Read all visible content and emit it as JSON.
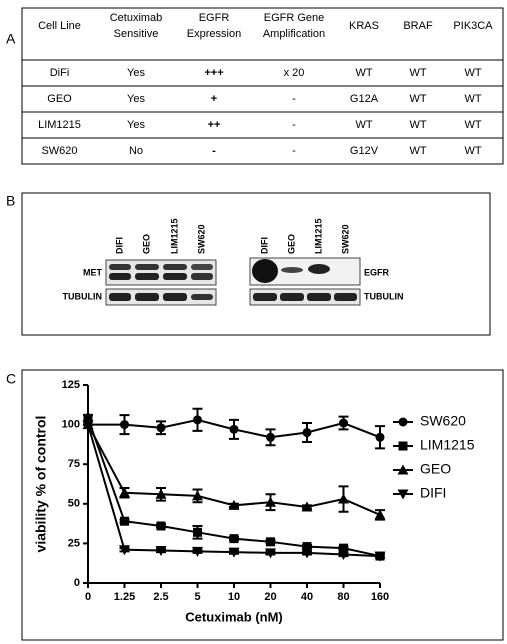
{
  "panels": {
    "a": "A",
    "b": "B",
    "c": "C"
  },
  "table": {
    "header": [
      [
        "Cell Line"
      ],
      [
        "Cetuximab",
        "Sensitive"
      ],
      [
        "EGFR",
        "Expression"
      ],
      [
        "EGFR Gene",
        "Amplification"
      ],
      [
        "KRAS"
      ],
      [
        "BRAF"
      ],
      [
        "PIK3CA"
      ]
    ],
    "rows": [
      [
        "DiFi",
        "Yes",
        "+++",
        "x 20",
        "WT",
        "WT",
        "WT"
      ],
      [
        "GEO",
        "Yes",
        "+",
        "-",
        "G12A",
        "WT",
        "WT"
      ],
      [
        "LIM1215",
        "Yes",
        "++",
        "-",
        "WT",
        "WT",
        "WT"
      ],
      [
        "SW620",
        "No",
        "-",
        "-",
        "G12V",
        "WT",
        "WT"
      ]
    ]
  },
  "blots": {
    "left": {
      "lanes": [
        "DIFI",
        "GEO",
        "LIM1215",
        "SW620"
      ],
      "targets": [
        "MET",
        "TUBULIN"
      ]
    },
    "right": {
      "lanes": [
        "DIFI",
        "GEO",
        "LIM1215",
        "SW620"
      ],
      "targets": [
        "EGFR",
        "TUBULIN"
      ]
    }
  },
  "chart_data": {
    "type": "line",
    "x_label": "Cetuximab (nM)",
    "y_label": "viability % of control",
    "categories": [
      "0",
      "1.25",
      "2.5",
      "5",
      "10",
      "20",
      "40",
      "80",
      "160"
    ],
    "ylim": [
      0,
      125
    ],
    "yticks": [
      0,
      25,
      50,
      75,
      100,
      125
    ],
    "legend": "right",
    "series": [
      {
        "name": "SW620",
        "color": "#000000",
        "marker": "circle",
        "values": [
          100,
          100,
          98,
          103,
          97,
          92,
          95,
          101,
          92
        ],
        "errors": [
          0,
          6,
          4,
          7,
          6,
          5,
          6,
          4,
          7
        ]
      },
      {
        "name": "LIM1215",
        "color": "#000000",
        "marker": "square",
        "values": [
          104,
          39,
          36,
          32,
          28,
          26,
          23,
          22,
          17
        ],
        "errors": [
          2,
          1,
          1,
          4,
          1,
          1,
          1,
          1,
          1
        ]
      },
      {
        "name": "GEO",
        "color": "#000000",
        "marker": "triangle-up",
        "values": [
          100,
          57,
          56,
          55,
          49,
          51,
          48,
          53,
          43
        ],
        "errors": [
          0,
          3,
          4,
          4,
          1,
          5,
          1,
          8,
          3
        ]
      },
      {
        "name": "DIFI",
        "color": "#000000",
        "marker": "triangle-down",
        "values": [
          100,
          21,
          20.5,
          20,
          19.5,
          19,
          19,
          18,
          17
        ],
        "errors": [
          0,
          1,
          1,
          1,
          1,
          1,
          1,
          1,
          1
        ]
      }
    ]
  }
}
